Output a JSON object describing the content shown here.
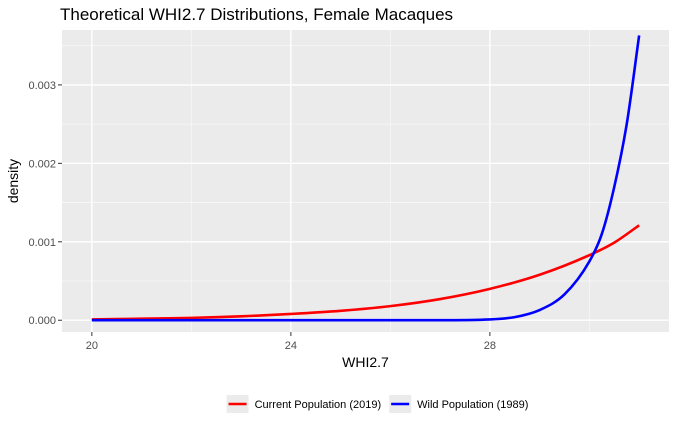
{
  "chart_data": {
    "type": "line",
    "title": "Theoretical WHI2.7 Distributions, Female Macaques",
    "xlabel": "WHI2.7",
    "ylabel": "density",
    "xlim": [
      19.4,
      31.6
    ],
    "ylim": [
      -0.00015,
      0.0037
    ],
    "x_ticks": [
      20,
      24,
      28
    ],
    "x_tick_labels": [
      "20",
      "24",
      "28"
    ],
    "y_ticks": [
      0,
      0.001,
      0.002,
      0.003
    ],
    "y_tick_labels": [
      "0.000",
      "0.001",
      "0.002",
      "0.003"
    ],
    "legend_position": "bottom",
    "series": [
      {
        "name": "Current Population (2019)",
        "color": "#ff0000",
        "x": [
          20,
          21,
          22,
          23,
          24,
          25,
          26,
          27,
          28,
          29,
          30,
          30.5,
          31
        ],
        "y": [
          1e-05,
          2e-05,
          3e-05,
          5e-05,
          8e-05,
          0.00012,
          0.00018,
          0.00027,
          0.0004,
          0.00058,
          0.00083,
          0.00099,
          0.00121
        ]
      },
      {
        "name": "Wild Population (1989)",
        "color": "#0000ff",
        "x": [
          20,
          24,
          26,
          27,
          28,
          28.5,
          29,
          29.5,
          30,
          30.25,
          30.5,
          30.75,
          31
        ],
        "y": [
          0,
          0,
          0,
          0,
          1e-05,
          4e-05,
          0.00013,
          0.00033,
          0.00075,
          0.0011,
          0.0017,
          0.0025,
          0.00363
        ]
      }
    ]
  }
}
